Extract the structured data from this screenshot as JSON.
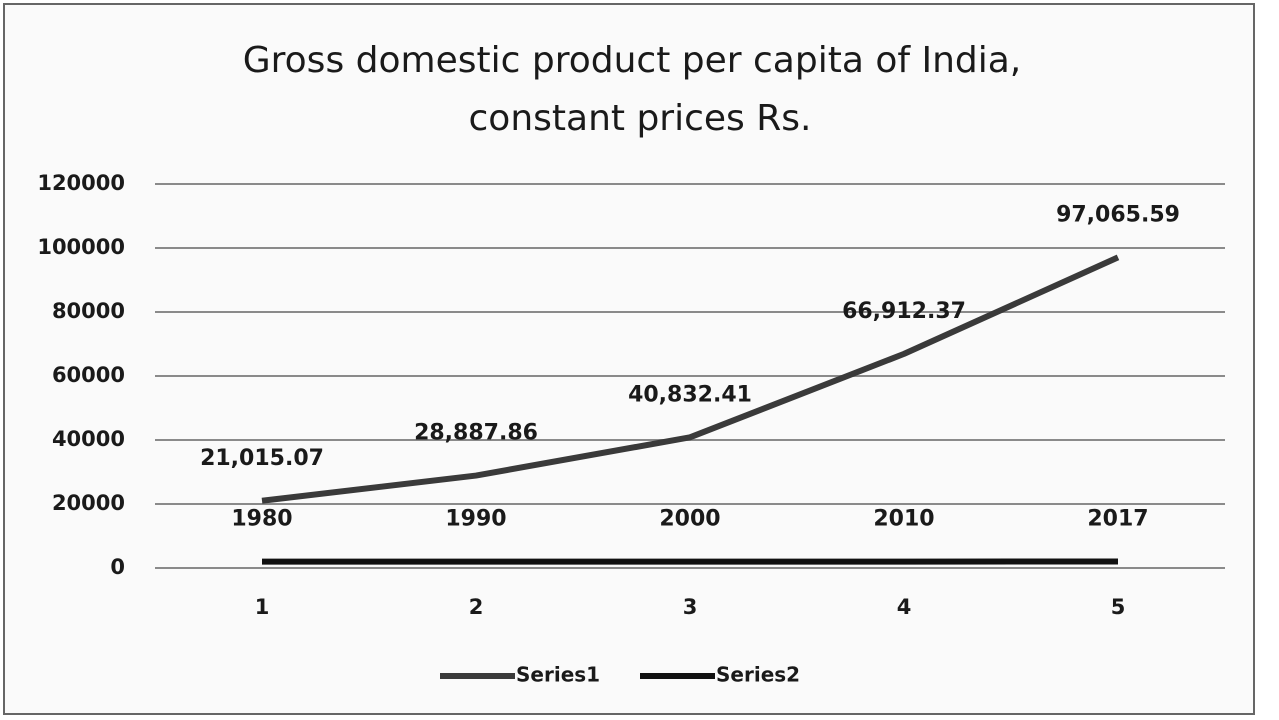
{
  "chart_data": {
    "type": "line",
    "title": [
      "Gross domestic product per capita of India,",
      "constant prices Rs."
    ],
    "categories": [
      "1",
      "2",
      "3",
      "4",
      "5"
    ],
    "series": [
      {
        "name": "Series1",
        "color": "#3a3a3a",
        "values": [
          21015.07,
          28887.86,
          40832.41,
          66912.37,
          97065.59
        ],
        "value_labels": [
          "21,015.07",
          "28,887.86",
          "40,832.41",
          "66,912.37",
          "97,065.59"
        ]
      },
      {
        "name": "Series2",
        "color": "#111111",
        "values": [
          1980,
          1990,
          2000,
          2010,
          2017
        ]
      }
    ],
    "ylim": [
      0,
      120000
    ],
    "yticks": [
      0,
      20000,
      40000,
      60000,
      80000,
      100000,
      120000
    ],
    "grid": true,
    "legend": "bottom"
  }
}
